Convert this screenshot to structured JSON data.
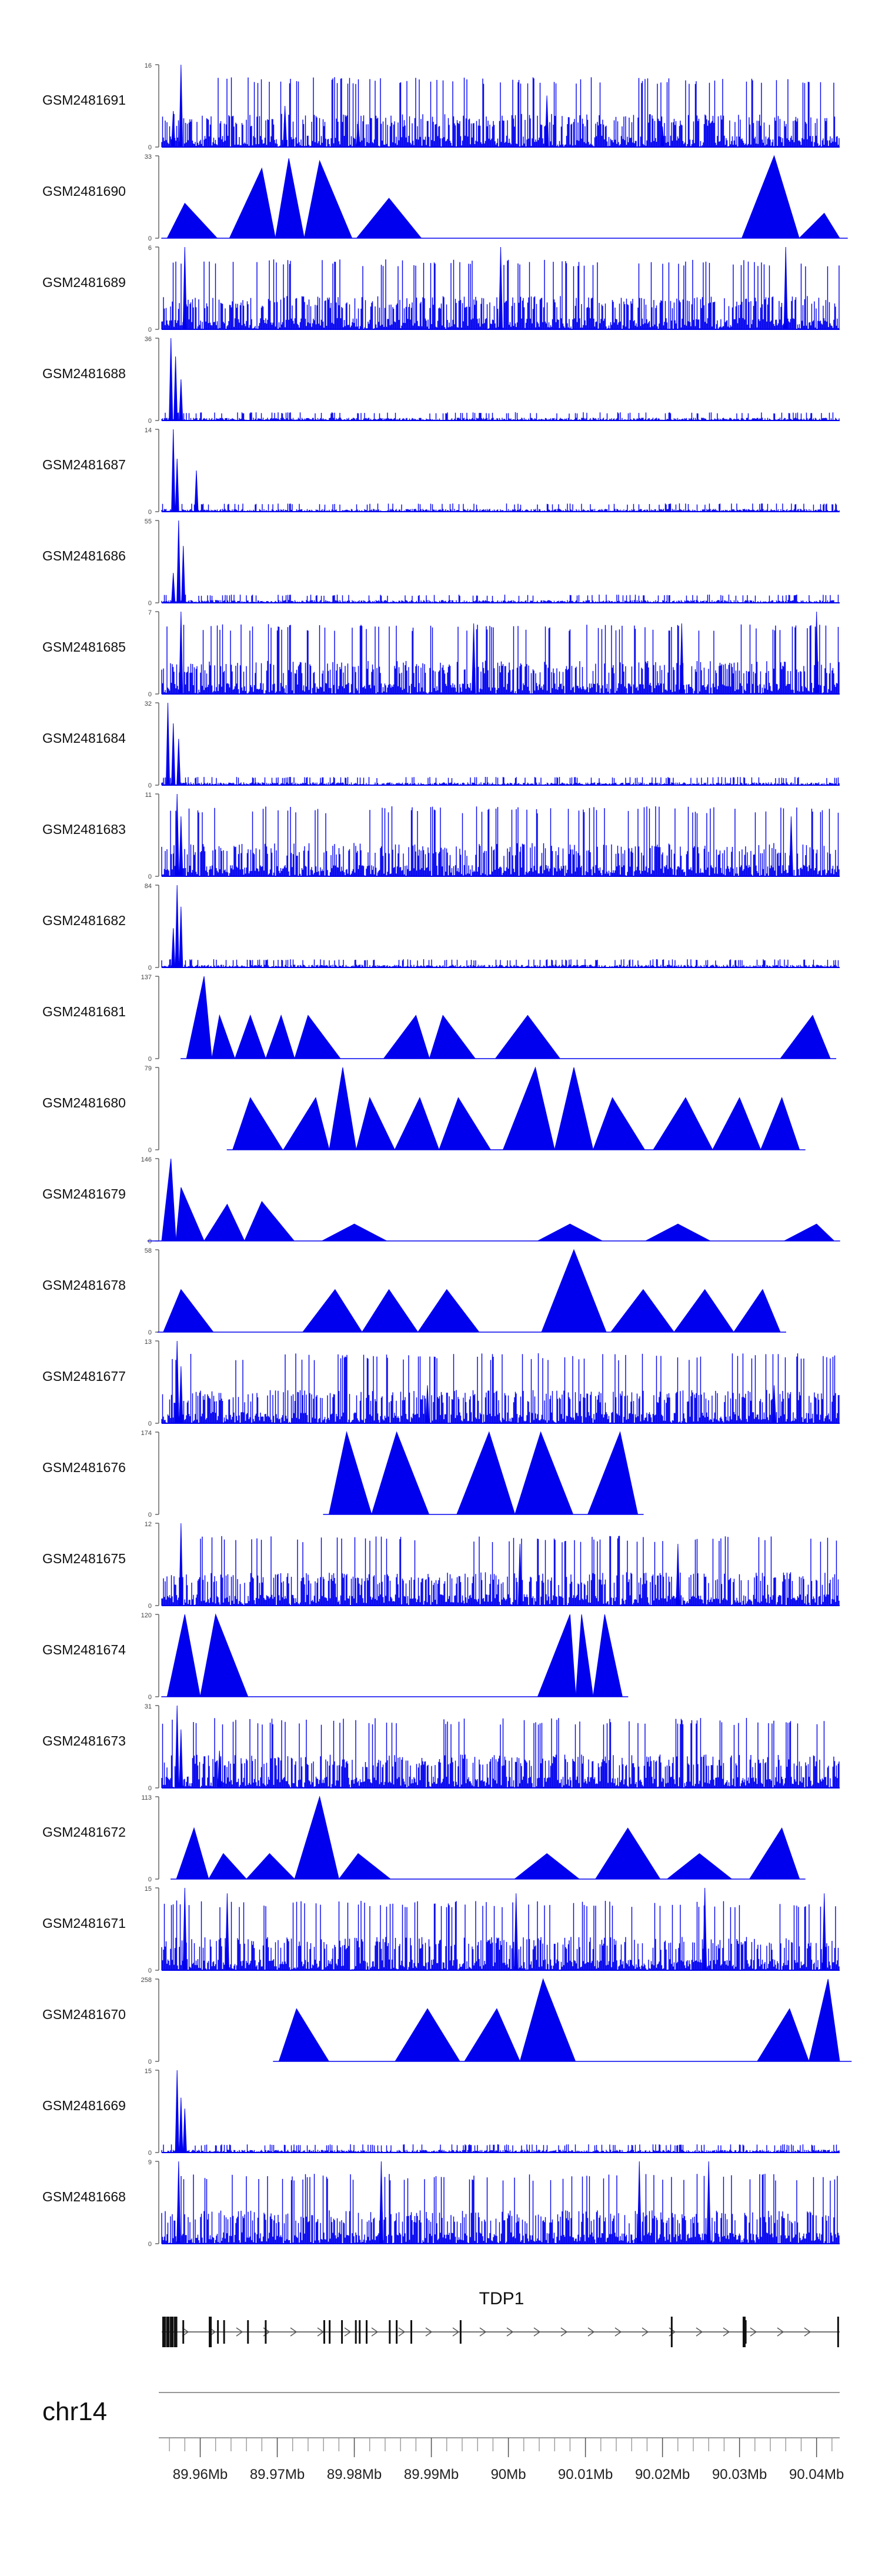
{
  "chart_data": {
    "type": "area",
    "title": "",
    "genome": {
      "chromosome": "chr14",
      "range_mb": [
        89.955,
        90.043
      ],
      "tick_labels": [
        "89.96Mb",
        "89.97Mb",
        "89.98Mb",
        "89.99Mb",
        "90Mb",
        "90.01Mb",
        "90.02Mb",
        "90.03Mb",
        "90.04Mb"
      ],
      "tick_values": [
        89.96,
        89.97,
        89.98,
        89.99,
        90.0,
        90.01,
        90.02,
        90.03,
        90.04
      ]
    },
    "gene": {
      "name": "TDP1",
      "strand": "+",
      "start_mb": 89.955,
      "end_mb": 90.043,
      "exons_mb": [
        89.9553,
        89.9558,
        89.9563,
        89.9568,
        89.9578,
        89.9613,
        89.9623,
        89.9631,
        89.9662,
        89.9685,
        89.9761,
        89.9768,
        89.9784,
        89.9802,
        89.9807,
        89.9816,
        89.9846,
        89.9855,
        89.9874,
        89.9938,
        90.0212,
        90.0306,
        90.0308,
        90.0428
      ]
    },
    "series": [
      {
        "name": "GSM2481691",
        "ymax": 16,
        "style": "dense",
        "peaks": [
          [
            89.9575,
            16
          ],
          [
            89.9565,
            7
          ],
          [
            89.971,
            8
          ],
          [
            89.9805,
            5
          ],
          [
            90.005,
            10
          ],
          [
            90.02,
            4
          ]
        ]
      },
      {
        "name": "GSM2481690",
        "ymax": 33,
        "style": "triangles",
        "peaks": [
          [
            89.958,
            14
          ],
          [
            89.968,
            28
          ],
          [
            89.9715,
            32
          ],
          [
            89.9755,
            31
          ],
          [
            89.9845,
            16
          ],
          [
            90.0345,
            33
          ],
          [
            90.041,
            10
          ]
        ]
      },
      {
        "name": "GSM2481689",
        "ymax": 6,
        "style": "dense",
        "peaks": [
          [
            89.958,
            6
          ],
          [
            89.999,
            6
          ],
          [
            90.036,
            6
          ]
        ]
      },
      {
        "name": "GSM2481688",
        "ymax": 36,
        "style": "dense",
        "peaks": [
          [
            89.9562,
            36
          ],
          [
            89.9568,
            28
          ],
          [
            89.9575,
            18
          ]
        ]
      },
      {
        "name": "GSM2481687",
        "ymax": 14,
        "style": "dense",
        "peaks": [
          [
            89.9565,
            14
          ],
          [
            89.957,
            9
          ],
          [
            89.9595,
            7
          ]
        ]
      },
      {
        "name": "GSM2481686",
        "ymax": 55,
        "style": "dense",
        "peaks": [
          [
            89.9572,
            55
          ],
          [
            89.9578,
            38
          ],
          [
            89.9565,
            20
          ]
        ]
      },
      {
        "name": "GSM2481685",
        "ymax": 7,
        "style": "dense",
        "peaks": [
          [
            89.9575,
            7
          ],
          [
            89.9955,
            6
          ],
          [
            90.0225,
            6
          ],
          [
            90.04,
            7
          ]
        ]
      },
      {
        "name": "GSM2481684",
        "ymax": 32,
        "style": "dense",
        "peaks": [
          [
            89.9558,
            32
          ],
          [
            89.9565,
            24
          ],
          [
            89.9572,
            18
          ]
        ]
      },
      {
        "name": "GSM2481683",
        "ymax": 11,
        "style": "dense",
        "peaks": [
          [
            89.957,
            11
          ],
          [
            89.9575,
            8
          ],
          [
            90.0367,
            8
          ]
        ]
      },
      {
        "name": "GSM2481682",
        "ymax": 84,
        "style": "dense",
        "peaks": [
          [
            89.957,
            84
          ],
          [
            89.9575,
            62
          ],
          [
            89.9565,
            40
          ]
        ]
      },
      {
        "name": "GSM2481681",
        "ymax": 137,
        "style": "triangles",
        "peaks": [
          [
            89.9605,
            137
          ],
          [
            89.9625,
            72
          ],
          [
            89.9665,
            72
          ],
          [
            89.9705,
            72
          ],
          [
            89.974,
            72
          ],
          [
            89.988,
            72
          ],
          [
            89.9915,
            72
          ],
          [
            90.0025,
            72
          ],
          [
            90.0395,
            72
          ]
        ]
      },
      {
        "name": "GSM2481680",
        "ymax": 79,
        "style": "triangles",
        "peaks": [
          [
            89.9785,
            79
          ],
          [
            89.9665,
            50
          ],
          [
            89.975,
            50
          ],
          [
            89.982,
            50
          ],
          [
            89.9885,
            50
          ],
          [
            89.9935,
            50
          ],
          [
            90.0035,
            79
          ],
          [
            90.0085,
            79
          ],
          [
            90.0135,
            50
          ],
          [
            90.023,
            50
          ],
          [
            90.03,
            50
          ],
          [
            90.0355,
            50
          ]
        ]
      },
      {
        "name": "GSM2481679",
        "ymax": 146,
        "style": "triangles",
        "peaks": [
          [
            89.9562,
            146
          ],
          [
            89.9575,
            95
          ],
          [
            89.9635,
            65
          ],
          [
            89.968,
            70
          ],
          [
            89.98,
            30
          ],
          [
            90.008,
            30
          ],
          [
            90.022,
            30
          ],
          [
            90.04,
            30
          ]
        ]
      },
      {
        "name": "GSM2481678",
        "ymax": 58,
        "style": "triangles",
        "peaks": [
          [
            89.9575,
            30
          ],
          [
            89.9775,
            30
          ],
          [
            89.9845,
            30
          ],
          [
            89.992,
            30
          ],
          [
            90.0085,
            58
          ],
          [
            90.0175,
            30
          ],
          [
            90.0255,
            30
          ],
          [
            90.033,
            30
          ]
        ]
      },
      {
        "name": "GSM2481677",
        "ymax": 13,
        "style": "dense",
        "peaks": [
          [
            89.957,
            13
          ],
          [
            89.9575,
            9
          ],
          [
            89.9895,
            6
          ],
          [
            90.0345,
            6
          ]
        ]
      },
      {
        "name": "GSM2481676",
        "ymax": 174,
        "style": "triangles",
        "peaks": [
          [
            89.979,
            174
          ],
          [
            89.9855,
            174
          ],
          [
            89.9975,
            174
          ],
          [
            90.0042,
            174
          ],
          [
            90.0145,
            174
          ]
        ]
      },
      {
        "name": "GSM2481675",
        "ymax": 12,
        "style": "dense",
        "peaks": [
          [
            89.9575,
            12
          ],
          [
            89.9575,
            10
          ],
          [
            90.0015,
            9
          ],
          [
            90.022,
            9
          ]
        ]
      },
      {
        "name": "GSM2481674",
        "ymax": 120,
        "style": "triangles",
        "peaks": [
          [
            89.958,
            120
          ],
          [
            89.962,
            120
          ],
          [
            90.008,
            120
          ],
          [
            90.0095,
            120
          ],
          [
            90.0125,
            120
          ]
        ]
      },
      {
        "name": "GSM2481673",
        "ymax": 31,
        "style": "dense",
        "peaks": [
          [
            89.957,
            31
          ],
          [
            89.9575,
            22
          ],
          [
            89.9625,
            14
          ]
        ]
      },
      {
        "name": "GSM2481672",
        "ymax": 113,
        "style": "triangles",
        "peaks": [
          [
            89.9592,
            70
          ],
          [
            89.9755,
            113
          ],
          [
            90.0155,
            70
          ],
          [
            90.0355,
            70
          ],
          [
            89.963,
            35
          ],
          [
            89.969,
            35
          ],
          [
            89.9805,
            35
          ],
          [
            90.005,
            35
          ],
          [
            90.0248,
            35
          ]
        ]
      },
      {
        "name": "GSM2481671",
        "ymax": 15,
        "style": "dense",
        "peaks": [
          [
            89.958,
            15
          ],
          [
            89.9635,
            14
          ],
          [
            90.001,
            14
          ],
          [
            90.0255,
            15
          ],
          [
            90.041,
            14
          ]
        ]
      },
      {
        "name": "GSM2481670",
        "ymax": 258,
        "style": "triangles",
        "peaks": [
          [
            89.9725,
            165
          ],
          [
            89.9895,
            165
          ],
          [
            89.9985,
            165
          ],
          [
            90.0045,
            258
          ],
          [
            90.0365,
            165
          ],
          [
            90.0415,
            258
          ]
        ]
      },
      {
        "name": "GSM2481669",
        "ymax": 15,
        "style": "dense",
        "peaks": [
          [
            89.957,
            15
          ],
          [
            89.9575,
            10
          ],
          [
            89.958,
            8
          ]
        ]
      },
      {
        "name": "GSM2481668",
        "ymax": 9,
        "style": "dense",
        "peaks": [
          [
            89.9572,
            9
          ],
          [
            89.9835,
            9
          ],
          [
            90.017,
            9
          ],
          [
            90.026,
            9
          ]
        ]
      }
    ]
  }
}
